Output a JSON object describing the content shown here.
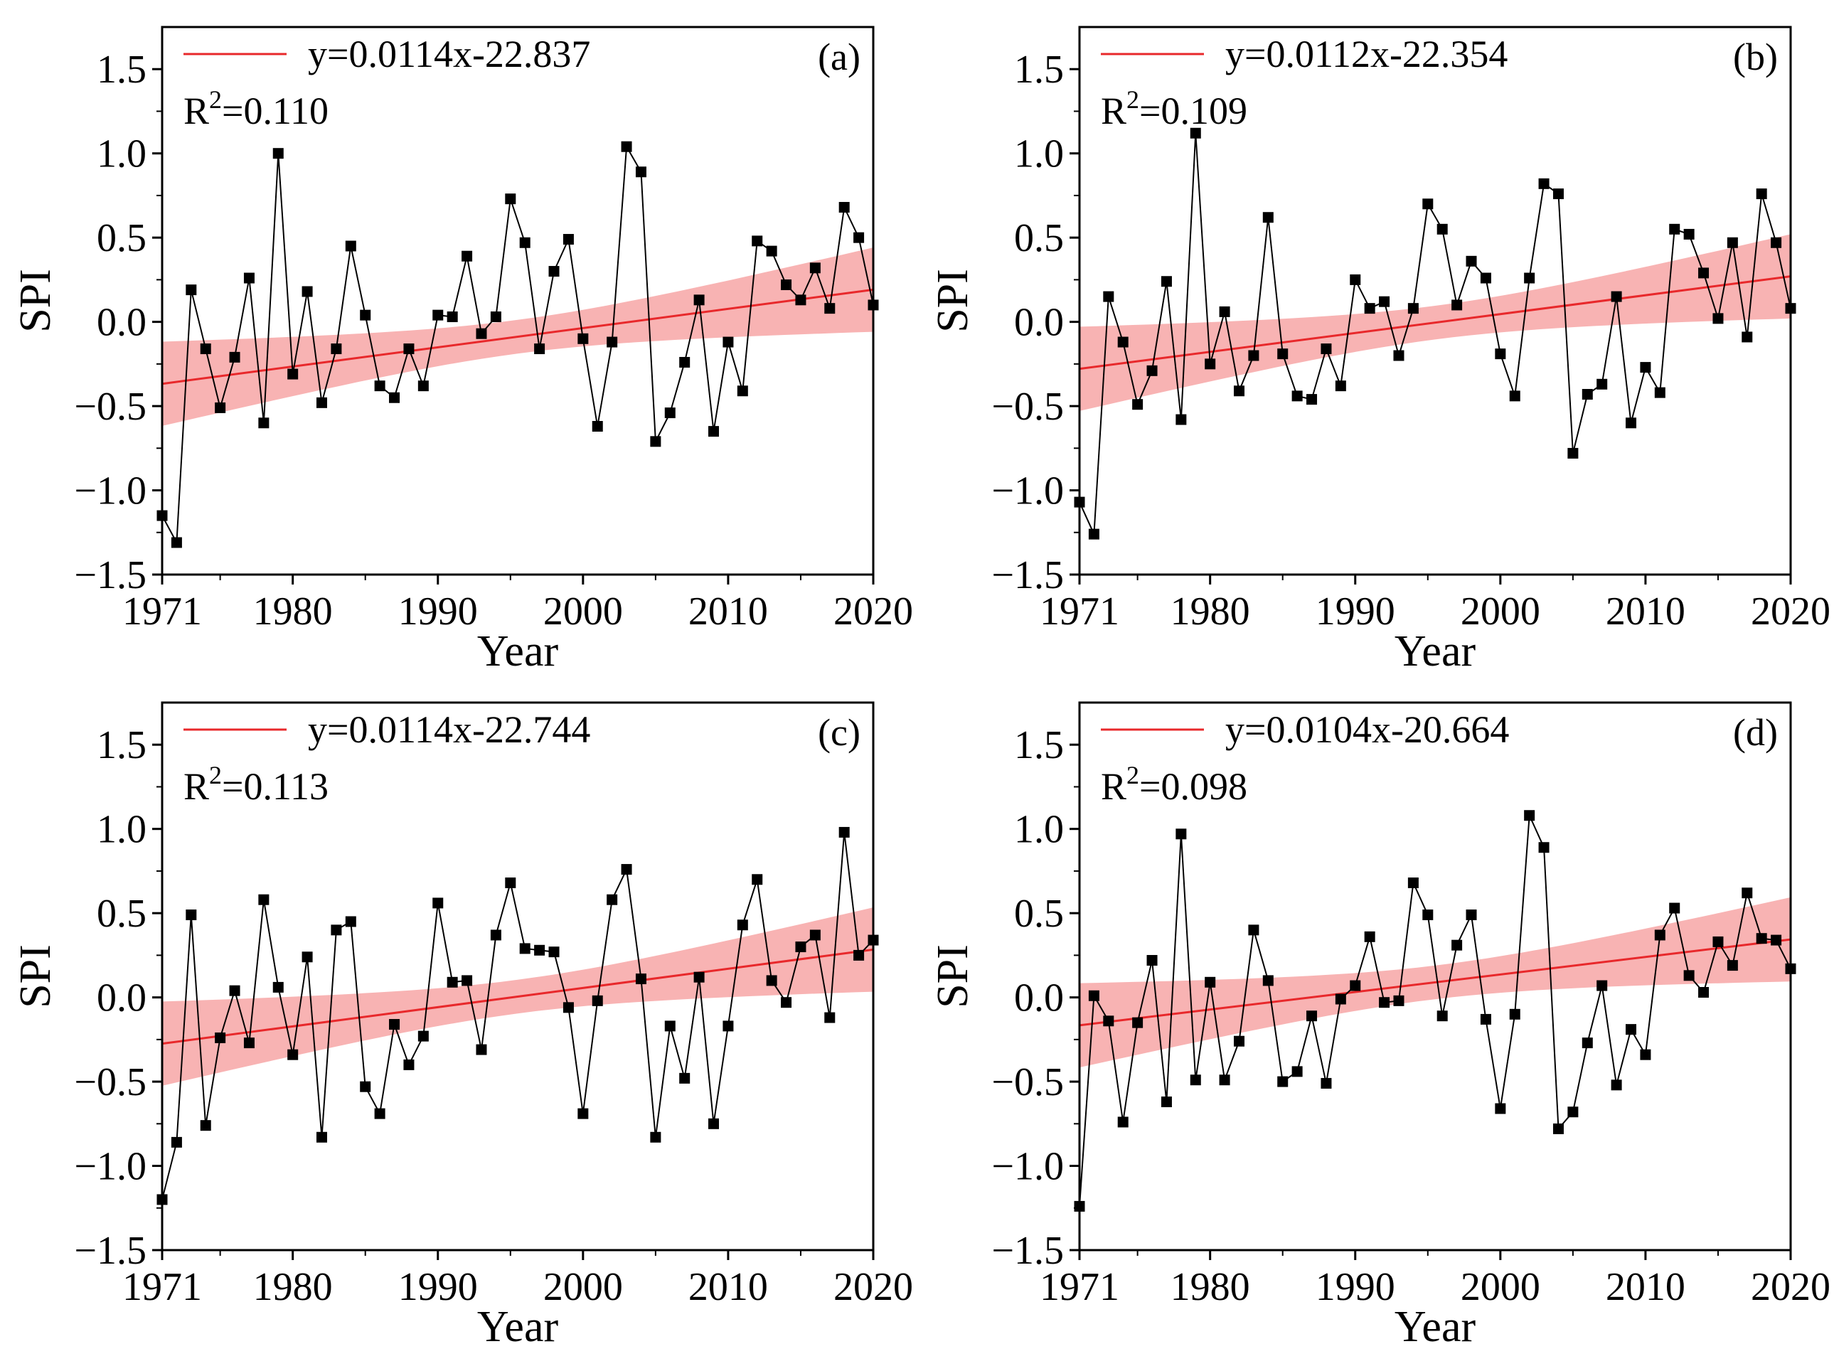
{
  "chart_data": [
    {
      "type": "line",
      "panel_label": "(a)",
      "xlabel": "Year",
      "ylabel": "SPI",
      "xlim": [
        1971,
        2020
      ],
      "ylim": [
        -1.5,
        1.75
      ],
      "x_tick_labels": [
        "1971",
        "1980",
        "1990",
        "2000",
        "2010",
        "2020"
      ],
      "x_tick_values": [
        1971,
        1980,
        1990,
        2000,
        2010,
        2020
      ],
      "y_tick_labels": [
        "−1.5",
        "−1.0",
        "−0.5",
        "0.0",
        "0.5",
        "1.0",
        "1.5"
      ],
      "y_tick_values": [
        -1.5,
        -1.0,
        -0.5,
        0.0,
        0.5,
        1.0,
        1.5
      ],
      "legend": {
        "placement": "top-left",
        "equation": "y=0.0114x-22.837",
        "r2_prefix": "R",
        "r2_sup": "2",
        "r2_value": "=0.110"
      },
      "fit": {
        "slope": 0.0114,
        "intercept": -22.837,
        "band_halfwidth_ends": 0.25,
        "band_halfwidth_mid": 0.1
      },
      "x": [
        1971,
        1972,
        1973,
        1974,
        1975,
        1976,
        1977,
        1978,
        1979,
        1980,
        1981,
        1982,
        1983,
        1984,
        1985,
        1986,
        1987,
        1988,
        1989,
        1990,
        1991,
        1992,
        1993,
        1994,
        1995,
        1996,
        1997,
        1998,
        1999,
        2000,
        2001,
        2002,
        2003,
        2004,
        2005,
        2006,
        2007,
        2008,
        2009,
        2010,
        2011,
        2012,
        2013,
        2014,
        2015,
        2016,
        2017,
        2018,
        2019,
        2020
      ],
      "values": [
        -1.15,
        -1.31,
        0.19,
        -0.16,
        -0.51,
        -0.21,
        0.26,
        -0.6,
        1.0,
        -0.31,
        0.18,
        -0.48,
        -0.16,
        0.45,
        0.04,
        -0.38,
        -0.45,
        -0.16,
        -0.38,
        0.04,
        0.03,
        0.39,
        -0.07,
        0.03,
        0.73,
        0.47,
        -0.16,
        0.3,
        0.49,
        -0.1,
        -0.62,
        -0.12,
        1.04,
        0.89,
        -0.71,
        -0.54,
        -0.24,
        0.13,
        -0.65,
        -0.12,
        -0.41,
        0.48,
        0.42,
        0.22,
        0.13,
        0.32,
        0.08,
        0.68,
        0.5,
        0.1
      ]
    },
    {
      "type": "line",
      "panel_label": "(b)",
      "xlabel": "Year",
      "ylabel": "SPI",
      "xlim": [
        1971,
        2020
      ],
      "ylim": [
        -1.5,
        1.75
      ],
      "x_tick_labels": [
        "1971",
        "1980",
        "1990",
        "2000",
        "2010",
        "2020"
      ],
      "x_tick_values": [
        1971,
        1980,
        1990,
        2000,
        2010,
        2020
      ],
      "y_tick_labels": [
        "−1.5",
        "−1.0",
        "−0.5",
        "0.0",
        "0.5",
        "1.0",
        "1.5"
      ],
      "y_tick_values": [
        -1.5,
        -1.0,
        -0.5,
        0.0,
        0.5,
        1.0,
        1.5
      ],
      "legend": {
        "placement": "top-left",
        "equation": "y=0.0112x-22.354",
        "r2_prefix": "R",
        "r2_sup": "2",
        "r2_value": "=0.109"
      },
      "fit": {
        "slope": 0.0112,
        "intercept": -22.354,
        "band_halfwidth_ends": 0.25,
        "band_halfwidth_mid": 0.1
      },
      "x": [
        1971,
        1972,
        1973,
        1974,
        1975,
        1976,
        1977,
        1978,
        1979,
        1980,
        1981,
        1982,
        1983,
        1984,
        1985,
        1986,
        1987,
        1988,
        1989,
        1990,
        1991,
        1992,
        1993,
        1994,
        1995,
        1996,
        1997,
        1998,
        1999,
        2000,
        2001,
        2002,
        2003,
        2004,
        2005,
        2006,
        2007,
        2008,
        2009,
        2010,
        2011,
        2012,
        2013,
        2014,
        2015,
        2016,
        2017,
        2018,
        2019,
        2020
      ],
      "values": [
        -1.07,
        -1.26,
        0.15,
        -0.12,
        -0.49,
        -0.29,
        0.24,
        -0.58,
        1.12,
        -0.25,
        0.06,
        -0.41,
        -0.2,
        0.62,
        -0.19,
        -0.44,
        -0.46,
        -0.16,
        -0.38,
        0.25,
        0.08,
        0.12,
        -0.2,
        0.08,
        0.7,
        0.55,
        0.1,
        0.36,
        0.26,
        -0.19,
        -0.44,
        0.26,
        0.82,
        0.76,
        -0.78,
        -0.43,
        -0.37,
        0.15,
        -0.6,
        -0.27,
        -0.42,
        0.55,
        0.52,
        0.29,
        0.02,
        0.47,
        -0.09,
        0.76,
        0.47,
        0.08
      ]
    },
    {
      "type": "line",
      "panel_label": "(c)",
      "xlabel": "Year",
      "ylabel": "SPI",
      "xlim": [
        1971,
        2020
      ],
      "ylim": [
        -1.5,
        1.75
      ],
      "x_tick_labels": [
        "1971",
        "1980",
        "1990",
        "2000",
        "2010",
        "2020"
      ],
      "x_tick_values": [
        1971,
        1980,
        1990,
        2000,
        2010,
        2020
      ],
      "y_tick_labels": [
        "−1.5",
        "−1.0",
        "−0.5",
        "0.0",
        "0.5",
        "1.0",
        "1.5"
      ],
      "y_tick_values": [
        -1.5,
        -1.0,
        -0.5,
        0.0,
        0.5,
        1.0,
        1.5
      ],
      "legend": {
        "placement": "top-left",
        "equation": "y=0.0114x-22.744",
        "r2_prefix": "R",
        "r2_sup": "2",
        "r2_value": "=0.113"
      },
      "fit": {
        "slope": 0.0114,
        "intercept": -22.744,
        "band_halfwidth_ends": 0.25,
        "band_halfwidth_mid": 0.1
      },
      "x": [
        1971,
        1972,
        1973,
        1974,
        1975,
        1976,
        1977,
        1978,
        1979,
        1980,
        1981,
        1982,
        1983,
        1984,
        1985,
        1986,
        1987,
        1988,
        1989,
        1990,
        1991,
        1992,
        1993,
        1994,
        1995,
        1996,
        1997,
        1998,
        1999,
        2000,
        2001,
        2002,
        2003,
        2004,
        2005,
        2006,
        2007,
        2008,
        2009,
        2010,
        2011,
        2012,
        2013,
        2014,
        2015,
        2016,
        2017,
        2018,
        2019,
        2020
      ],
      "values": [
        -1.2,
        -0.86,
        0.49,
        -0.76,
        -0.24,
        0.04,
        -0.27,
        0.58,
        0.06,
        -0.34,
        0.24,
        -0.83,
        0.4,
        0.45,
        -0.53,
        -0.69,
        -0.16,
        -0.4,
        -0.23,
        0.56,
        0.09,
        0.1,
        -0.31,
        0.37,
        0.68,
        0.29,
        0.28,
        0.27,
        -0.06,
        -0.69,
        -0.02,
        0.58,
        0.76,
        0.11,
        -0.83,
        -0.17,
        -0.48,
        0.12,
        -0.75,
        -0.17,
        0.43,
        0.7,
        0.1,
        -0.03,
        0.3,
        0.37,
        -0.12,
        0.98,
        0.25,
        0.34
      ]
    },
    {
      "type": "line",
      "panel_label": "(d)",
      "xlabel": "Year",
      "ylabel": "SPI",
      "xlim": [
        1971,
        2020
      ],
      "ylim": [
        -1.5,
        1.75
      ],
      "x_tick_labels": [
        "1971",
        "1980",
        "1990",
        "2000",
        "2010",
        "2020"
      ],
      "x_tick_values": [
        1971,
        1980,
        1990,
        2000,
        2010,
        2020
      ],
      "y_tick_labels": [
        "−1.5",
        "−1.0",
        "−0.5",
        "0.0",
        "0.5",
        "1.0",
        "1.5"
      ],
      "y_tick_values": [
        -1.5,
        -1.0,
        -0.5,
        0.0,
        0.5,
        1.0,
        1.5
      ],
      "legend": {
        "placement": "top-left",
        "equation": "y=0.0104x-20.664",
        "r2_prefix": "R",
        "r2_sup": "2",
        "r2_value": "=0.098"
      },
      "fit": {
        "slope": 0.0104,
        "intercept": -20.664,
        "band_halfwidth_ends": 0.25,
        "band_halfwidth_mid": 0.1
      },
      "x": [
        1971,
        1972,
        1973,
        1974,
        1975,
        1976,
        1977,
        1978,
        1979,
        1980,
        1981,
        1982,
        1983,
        1984,
        1985,
        1986,
        1987,
        1988,
        1989,
        1990,
        1991,
        1992,
        1993,
        1994,
        1995,
        1996,
        1997,
        1998,
        1999,
        2000,
        2001,
        2002,
        2003,
        2004,
        2005,
        2006,
        2007,
        2008,
        2009,
        2010,
        2011,
        2012,
        2013,
        2014,
        2015,
        2016,
        2017,
        2018,
        2019,
        2020
      ],
      "values": [
        -1.24,
        0.01,
        -0.14,
        -0.74,
        -0.15,
        0.22,
        -0.62,
        0.97,
        -0.49,
        0.09,
        -0.49,
        -0.26,
        0.4,
        0.1,
        -0.5,
        -0.44,
        -0.11,
        -0.51,
        -0.01,
        0.07,
        0.36,
        -0.03,
        -0.02,
        0.68,
        0.49,
        -0.11,
        0.31,
        0.49,
        -0.13,
        -0.66,
        -0.1,
        1.08,
        0.89,
        -0.78,
        -0.68,
        -0.27,
        0.07,
        -0.52,
        -0.19,
        -0.34,
        0.37,
        0.53,
        0.13,
        0.03,
        0.33,
        0.19,
        0.62,
        0.35,
        0.34,
        0.17
      ]
    }
  ],
  "colors": {
    "fit_line": "#e8282b",
    "band": "#f7a6a6",
    "series": "#000000"
  }
}
